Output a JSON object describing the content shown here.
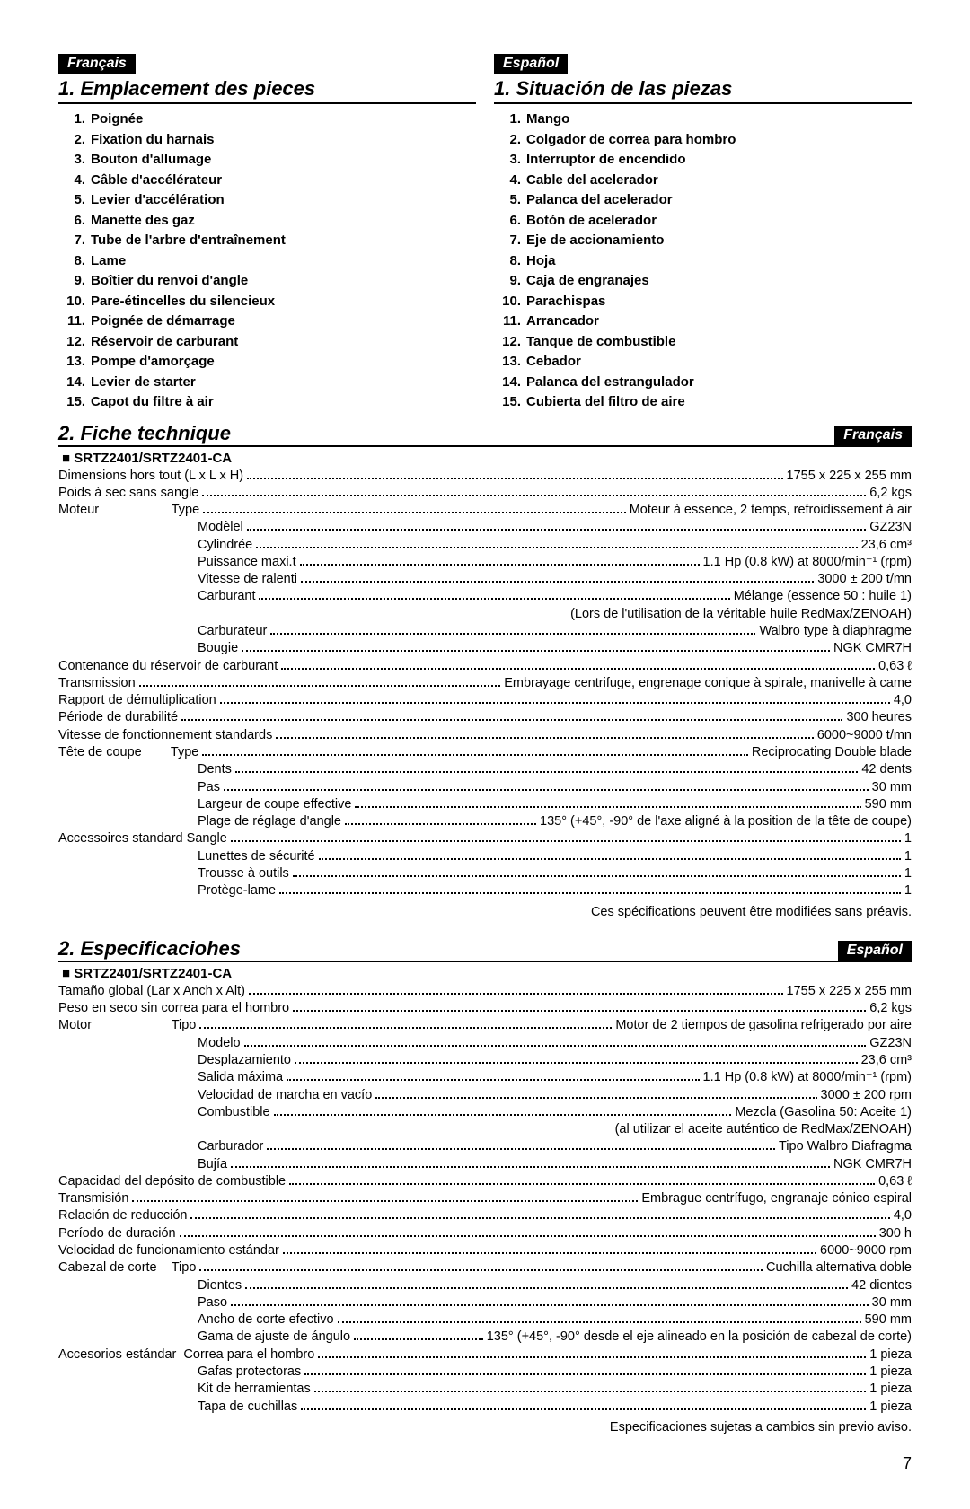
{
  "langTags": {
    "fr": "Français",
    "es": "Español"
  },
  "section1": {
    "fr": {
      "title": "1. Emplacement des pieces",
      "items": [
        "Poignée",
        "Fixation du harnais",
        "Bouton d'allumage",
        "Câble d'accélérateur",
        "Levier d'accélération",
        "Manette des gaz",
        "Tube de l'arbre d'entraînement",
        "Lame",
        "Boîtier du renvoi d'angle",
        "Pare-étincelles du silencieux",
        "Poignée de démarrage",
        "Réservoir de carburant",
        "Pompe d'amorçage",
        "Levier de starter",
        "Capot du filtre à air"
      ]
    },
    "es": {
      "title": "1. Situación de las piezas",
      "items": [
        "Mango",
        "Colgador de correa para hombro",
        "Interruptor de encendido",
        "Cable del acelerador",
        "Palanca del acelerador",
        "Botón de acelerador",
        "Eje de accionamiento",
        "Hoja",
        "Caja de engranajes",
        "Parachispas",
        "Arrancador",
        "Tanque de combustible",
        "Cebador",
        "Palanca del estrangulador",
        "Cubierta del filtro de aire"
      ]
    }
  },
  "specModel": "SRTZ2401/SRTZ2401-CA",
  "fr2": {
    "title": "2. Fiche technique",
    "rows": [
      {
        "lab": "Dimensions hors tout (L x L x H)",
        "val": "1755 x 225 x 255 mm",
        "ind": 0
      },
      {
        "lab": "Poids à sec sans sangle",
        "val": "6,2 kgs",
        "ind": 0
      },
      {
        "lab": "Moteur                    Type",
        "val": "Moteur à essence, 2 temps, refroidissement à air",
        "ind": 0
      },
      {
        "lab": "Modèlel",
        "val": "GZ23N",
        "ind": 1
      },
      {
        "lab": "Cylindrée",
        "val": "23,6 cm³",
        "ind": 1
      },
      {
        "lab": "Puissance maxi.t",
        "val": "1.1 Hp (0.8 kW) at 8000/min⁻¹ (rpm)",
        "ind": 1
      },
      {
        "lab": "Vitesse de ralenti",
        "val": "3000 ± 200 t/mn",
        "ind": 1
      },
      {
        "lab": "Carburant",
        "val": "Mélange (essence 50 : huile 1)",
        "ind": 1
      },
      {
        "lab": "",
        "val": "(Lors de l'utilisation de la véritable huile RedMax/ZENOAH)",
        "ind": 1,
        "noteOnly": true
      },
      {
        "lab": "Carburateur",
        "val": "Walbro type à diaphragme",
        "ind": 1
      },
      {
        "lab": "Bougie",
        "val": "NGK CMR7H",
        "ind": 1
      },
      {
        "lab": "Contenance du réservoir de carburant",
        "val": "0,63 ℓ",
        "ind": 0
      },
      {
        "lab": "Transmission",
        "val": "Embrayage centrifuge, engrenage conique à spirale, manivelle à came",
        "ind": 0
      },
      {
        "lab": "Rapport de démultiplication",
        "val": "4,0",
        "ind": 0
      },
      {
        "lab": "Période de durabilité",
        "val": "300 heures",
        "ind": 0
      },
      {
        "lab": "Vitesse de fonctionnement standards",
        "val": "6000~9000 t/mn",
        "ind": 0
      },
      {
        "lab": "Tête de coupe        Type",
        "val": "Reciprocating Double blade",
        "ind": 0
      },
      {
        "lab": "Dents",
        "val": "42 dents",
        "ind": 1
      },
      {
        "lab": "Pas",
        "val": "30 mm",
        "ind": 1
      },
      {
        "lab": "Largeur de coupe effective",
        "val": "590 mm",
        "ind": 1
      },
      {
        "lab": "Plage de réglage d'angle",
        "val": "135° (+45°, -90° de l'axe aligné à la position de la tête de coupe)",
        "ind": 1
      },
      {
        "lab": "Accessoires standard Sangle",
        "val": "1",
        "ind": 0
      },
      {
        "lab": "Lunettes de sécurité",
        "val": "1",
        "ind": 1
      },
      {
        "lab": "Trousse à outils",
        "val": "1",
        "ind": 1
      },
      {
        "lab": "Protège-lame",
        "val": "1",
        "ind": 1
      }
    ],
    "footnote": "Ces spécifications peuvent être modifiées sans préavis."
  },
  "es2": {
    "title": "2. Especificaciohes",
    "rows": [
      {
        "lab": "Tamaño global (Lar x Anch x Alt)",
        "val": "1755 x 225 x 255 mm",
        "ind": 0
      },
      {
        "lab": "Peso en seco sin correa para el hombro",
        "val": "6,2 kgs",
        "ind": 0
      },
      {
        "lab": "Motor                      Tipo",
        "val": "Motor de 2 tiempos de gasolina refrigerado por aire",
        "ind": 0
      },
      {
        "lab": "Modelo",
        "val": "GZ23N",
        "ind": 1
      },
      {
        "lab": "Desplazamiento",
        "val": "23,6 cm³",
        "ind": 1
      },
      {
        "lab": "Salida máxima",
        "val": "1.1 Hp (0.8 kW) at 8000/min⁻¹ (rpm)",
        "ind": 1
      },
      {
        "lab": "Velocidad de marcha en vacío",
        "val": "3000 ± 200 rpm",
        "ind": 1
      },
      {
        "lab": "Combustible",
        "val": "Mezcla (Gasolina 50: Aceite 1)",
        "ind": 1
      },
      {
        "lab": "",
        "val": "(al utilizar el aceite auténtico de RedMax/ZENOAH)",
        "ind": 1,
        "noteOnly": true
      },
      {
        "lab": "Carburador",
        "val": "Tipo Walbro Diafragma",
        "ind": 1
      },
      {
        "lab": "Bujía",
        "val": "NGK CMR7H",
        "ind": 1
      },
      {
        "lab": "Capacidad del depósito de combustible",
        "val": "0,63 ℓ",
        "ind": 0
      },
      {
        "lab": "Transmisión",
        "val": "Embrague centrífugo, engranaje cónico espiral",
        "ind": 0
      },
      {
        "lab": "Relación de reducción",
        "val": "4,0",
        "ind": 0
      },
      {
        "lab": "Período de duración",
        "val": "300 h",
        "ind": 0
      },
      {
        "lab": "Velocidad de funcionamiento estándar",
        "val": "6000~9000 rpm",
        "ind": 0
      },
      {
        "lab": "Cabezal de corte    Tipo",
        "val": "Cuchilla alternativa doble",
        "ind": 0
      },
      {
        "lab": "Dientes",
        "val": "42 dientes",
        "ind": 1
      },
      {
        "lab": "Paso",
        "val": "30 mm",
        "ind": 1
      },
      {
        "lab": "Ancho de corte efectivo",
        "val": "590 mm",
        "ind": 1
      },
      {
        "lab": "Gama de ajuste de ángulo",
        "val": "135° (+45°, -90° desde el eje alineado en la posición de cabezal de corte)",
        "ind": 1
      },
      {
        "lab": "Accesorios estándar  Correa para el hombro",
        "val": "1 pieza",
        "ind": 0
      },
      {
        "lab": "Gafas protectoras",
        "val": "1 pieza",
        "ind": 1
      },
      {
        "lab": "Kit de herramientas",
        "val": "1 pieza",
        "ind": 1
      },
      {
        "lab": "Tapa de cuchillas",
        "val": "1 pieza",
        "ind": 1
      }
    ],
    "footnote": "Especificaciones sujetas a cambios sin previo aviso."
  },
  "pageNumber": "7"
}
